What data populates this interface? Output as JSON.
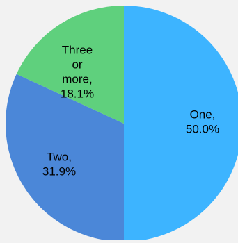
{
  "chart_data": {
    "type": "pie",
    "title": "",
    "categories": [
      "One",
      "Two",
      "Three or more"
    ],
    "values": [
      50.0,
      31.9,
      18.1
    ],
    "labels": [
      [
        "One,",
        "50.0%"
      ],
      [
        "Two,",
        "31.9%"
      ],
      [
        "Three",
        "or",
        "more,",
        "18.1%"
      ]
    ],
    "colors": [
      "#3db4ff",
      "#4b87d8",
      "#5fd07d"
    ],
    "start_angle": "12 o'clock",
    "direction": "clockwise",
    "legend": "none (labels on slices)"
  }
}
